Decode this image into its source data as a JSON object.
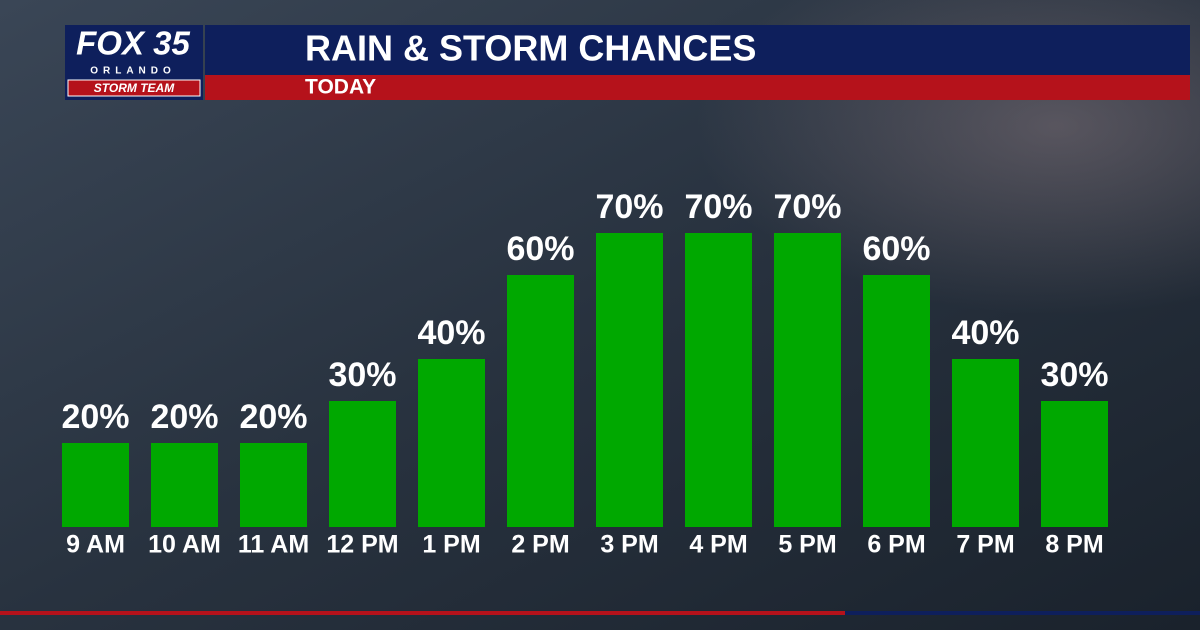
{
  "logo": {
    "brand": "FOX 35",
    "city": "ORLANDO",
    "team": "STORM TEAM"
  },
  "chart_data": {
    "type": "bar",
    "title": "RAIN & STORM CHANCES",
    "subtitle": "TODAY",
    "categories": [
      "9 AM",
      "10 AM",
      "11 AM",
      "12 PM",
      "1 PM",
      "2 PM",
      "3 PM",
      "4 PM",
      "5 PM",
      "6 PM",
      "7 PM",
      "8 PM"
    ],
    "values": [
      20,
      20,
      20,
      30,
      40,
      60,
      70,
      70,
      70,
      60,
      40,
      30
    ],
    "value_labels": [
      "20%",
      "20%",
      "20%",
      "30%",
      "40%",
      "60%",
      "70%",
      "70%",
      "70%",
      "60%",
      "40%",
      "30%"
    ],
    "color": "#00a800",
    "ylim": [
      0,
      100
    ]
  }
}
